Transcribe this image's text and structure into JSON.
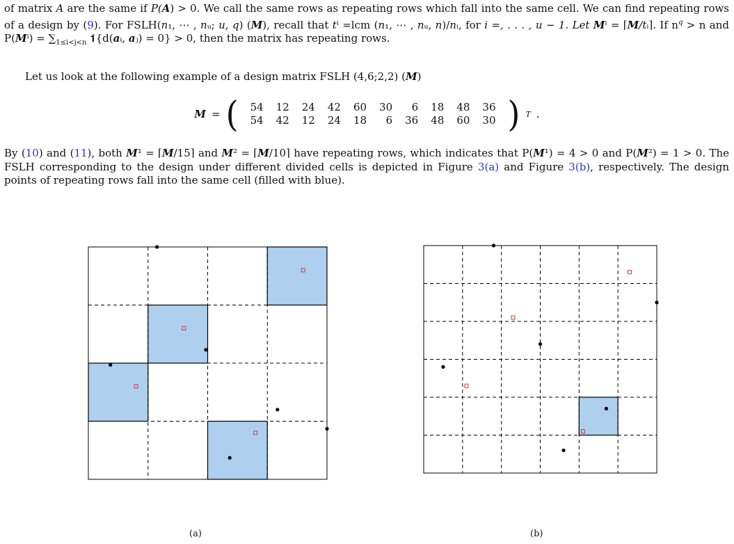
{
  "paragraph1": {
    "l1a": "of matrix ",
    "A": "A",
    "l1b": " are the same if ",
    "PA": "P(",
    "Abold": "A",
    "l1c": ") > 0. We call the same rows as repeating rows which fall into the same cell. We",
    "l2a": "can find repeating rows of a design by (",
    "ref9": "9",
    "l2b": "). For FSLH(",
    "n1": "n",
    "l2c": "₁, ⋯ , ",
    "nu": "n",
    "l2d": "ᵤ; ",
    "u": "u",
    "l2e": ", ",
    "q": "q",
    "l2f": ") (",
    "M1": "M",
    "l2g": "), recall that ",
    "ti": "t",
    "l2h": "ⁱ =lcm (",
    "n1b": "n",
    "l2i": "₁, ⋯ , ",
    "nub": "n",
    "l2j": "ᵤ, ",
    "n": "n",
    "l2k": ")/",
    "ni": "n",
    "l2l": "ᵢ, for",
    "l3a": "i =, . . . , u − 1. Let ",
    "Mi": "M",
    "l3b": "ⁱ = ⌈",
    "M2": "M",
    "l3c": "/t",
    "l3d": "ᵢ⌉. If n",
    "l3e": "ᵢ",
    "l3f": "q",
    "l3g": " > n and P(",
    "Mi2": "M",
    "l3h": "ⁱ) = ∑",
    "l3i": "1≤i<j<n",
    "l3j": " 𝟏{d(",
    "ai": "a",
    "l3k": "ᵢ, ",
    "aj": "a",
    "l3l": "ⱼ) = 0} > 0, then the matrix has",
    "l4": "repeating rows."
  },
  "paragraph2": {
    "text_a": "Let us look at the following example of a design matrix FSLH (4,6;2,2) (",
    "M": "M",
    "text_b": ")"
  },
  "matrix": {
    "lhs": "M",
    "eq": " = ",
    "row1": [
      "54",
      "12",
      "24",
      "42",
      "60",
      "30",
      "6",
      "18",
      "48",
      "36"
    ],
    "row2": [
      "54",
      "42",
      "12",
      "24",
      "18",
      "6",
      "36",
      "48",
      "60",
      "30"
    ],
    "transpose": "T",
    "end": "."
  },
  "paragraph3": {
    "l1a": "By (",
    "ref10": "10",
    "l1b": ") and (",
    "ref11": "11",
    "l1c": "), both ",
    "M1": "M",
    "l1d": "¹ = ⌈",
    "M1b": "M",
    "l1e": "/15⌉ and ",
    "M2": "M",
    "l1f": "² = ⌈",
    "M2b": "M",
    "l1g": "/10⌉ have repeating rows, which indicates that P(",
    "M1c": "M",
    "l1h": "¹) = 4 > 0",
    "l2a": "and P(",
    "M2c": "M",
    "l2b": "²) = 1 > 0. The FSLH corresponding to the design under different divided cells is depicted in Figure ",
    "ref3a": "3(a)",
    "l2c": " and",
    "l3a": "Figure ",
    "ref3b": "3(b)",
    "l3b": ", respectively. The design points of repeating rows fall into the same cell (filled with blue)."
  },
  "figure_a": {
    "caption": "(a)",
    "divisions": 4,
    "filled_cells": [
      [
        3,
        3
      ],
      [
        1,
        2
      ],
      [
        0,
        1
      ],
      [
        2,
        0
      ]
    ],
    "points": [
      [
        1.15,
        4.0
      ],
      [
        4.0,
        0.87
      ],
      [
        1.97,
        2.23
      ],
      [
        0.37,
        1.97
      ],
      [
        3.17,
        1.2
      ],
      [
        2.37,
        0.37
      ]
    ],
    "squares": [
      [
        3.6,
        3.6
      ],
      [
        1.6,
        2.6
      ],
      [
        0.8,
        1.6
      ],
      [
        2.8,
        0.8
      ]
    ],
    "fill_color": "#aecfed",
    "point_color": "#000000",
    "square_color": "#e53030"
  },
  "figure_b": {
    "caption": "(b)",
    "divisions": 6,
    "filled_cells": [
      [
        4,
        1
      ]
    ],
    "points": [
      [
        1.8,
        6.0
      ],
      [
        6.0,
        4.5
      ],
      [
        3.0,
        3.4
      ],
      [
        0.5,
        2.8
      ],
      [
        4.7,
        1.7
      ],
      [
        3.6,
        0.6
      ]
    ],
    "squares": [
      [
        5.3,
        5.3
      ],
      [
        2.3,
        4.1
      ],
      [
        1.1,
        2.3
      ],
      [
        4.1,
        1.1
      ]
    ],
    "fill_color": "#aecfed",
    "point_color": "#000000",
    "square_color": "#e53030"
  }
}
